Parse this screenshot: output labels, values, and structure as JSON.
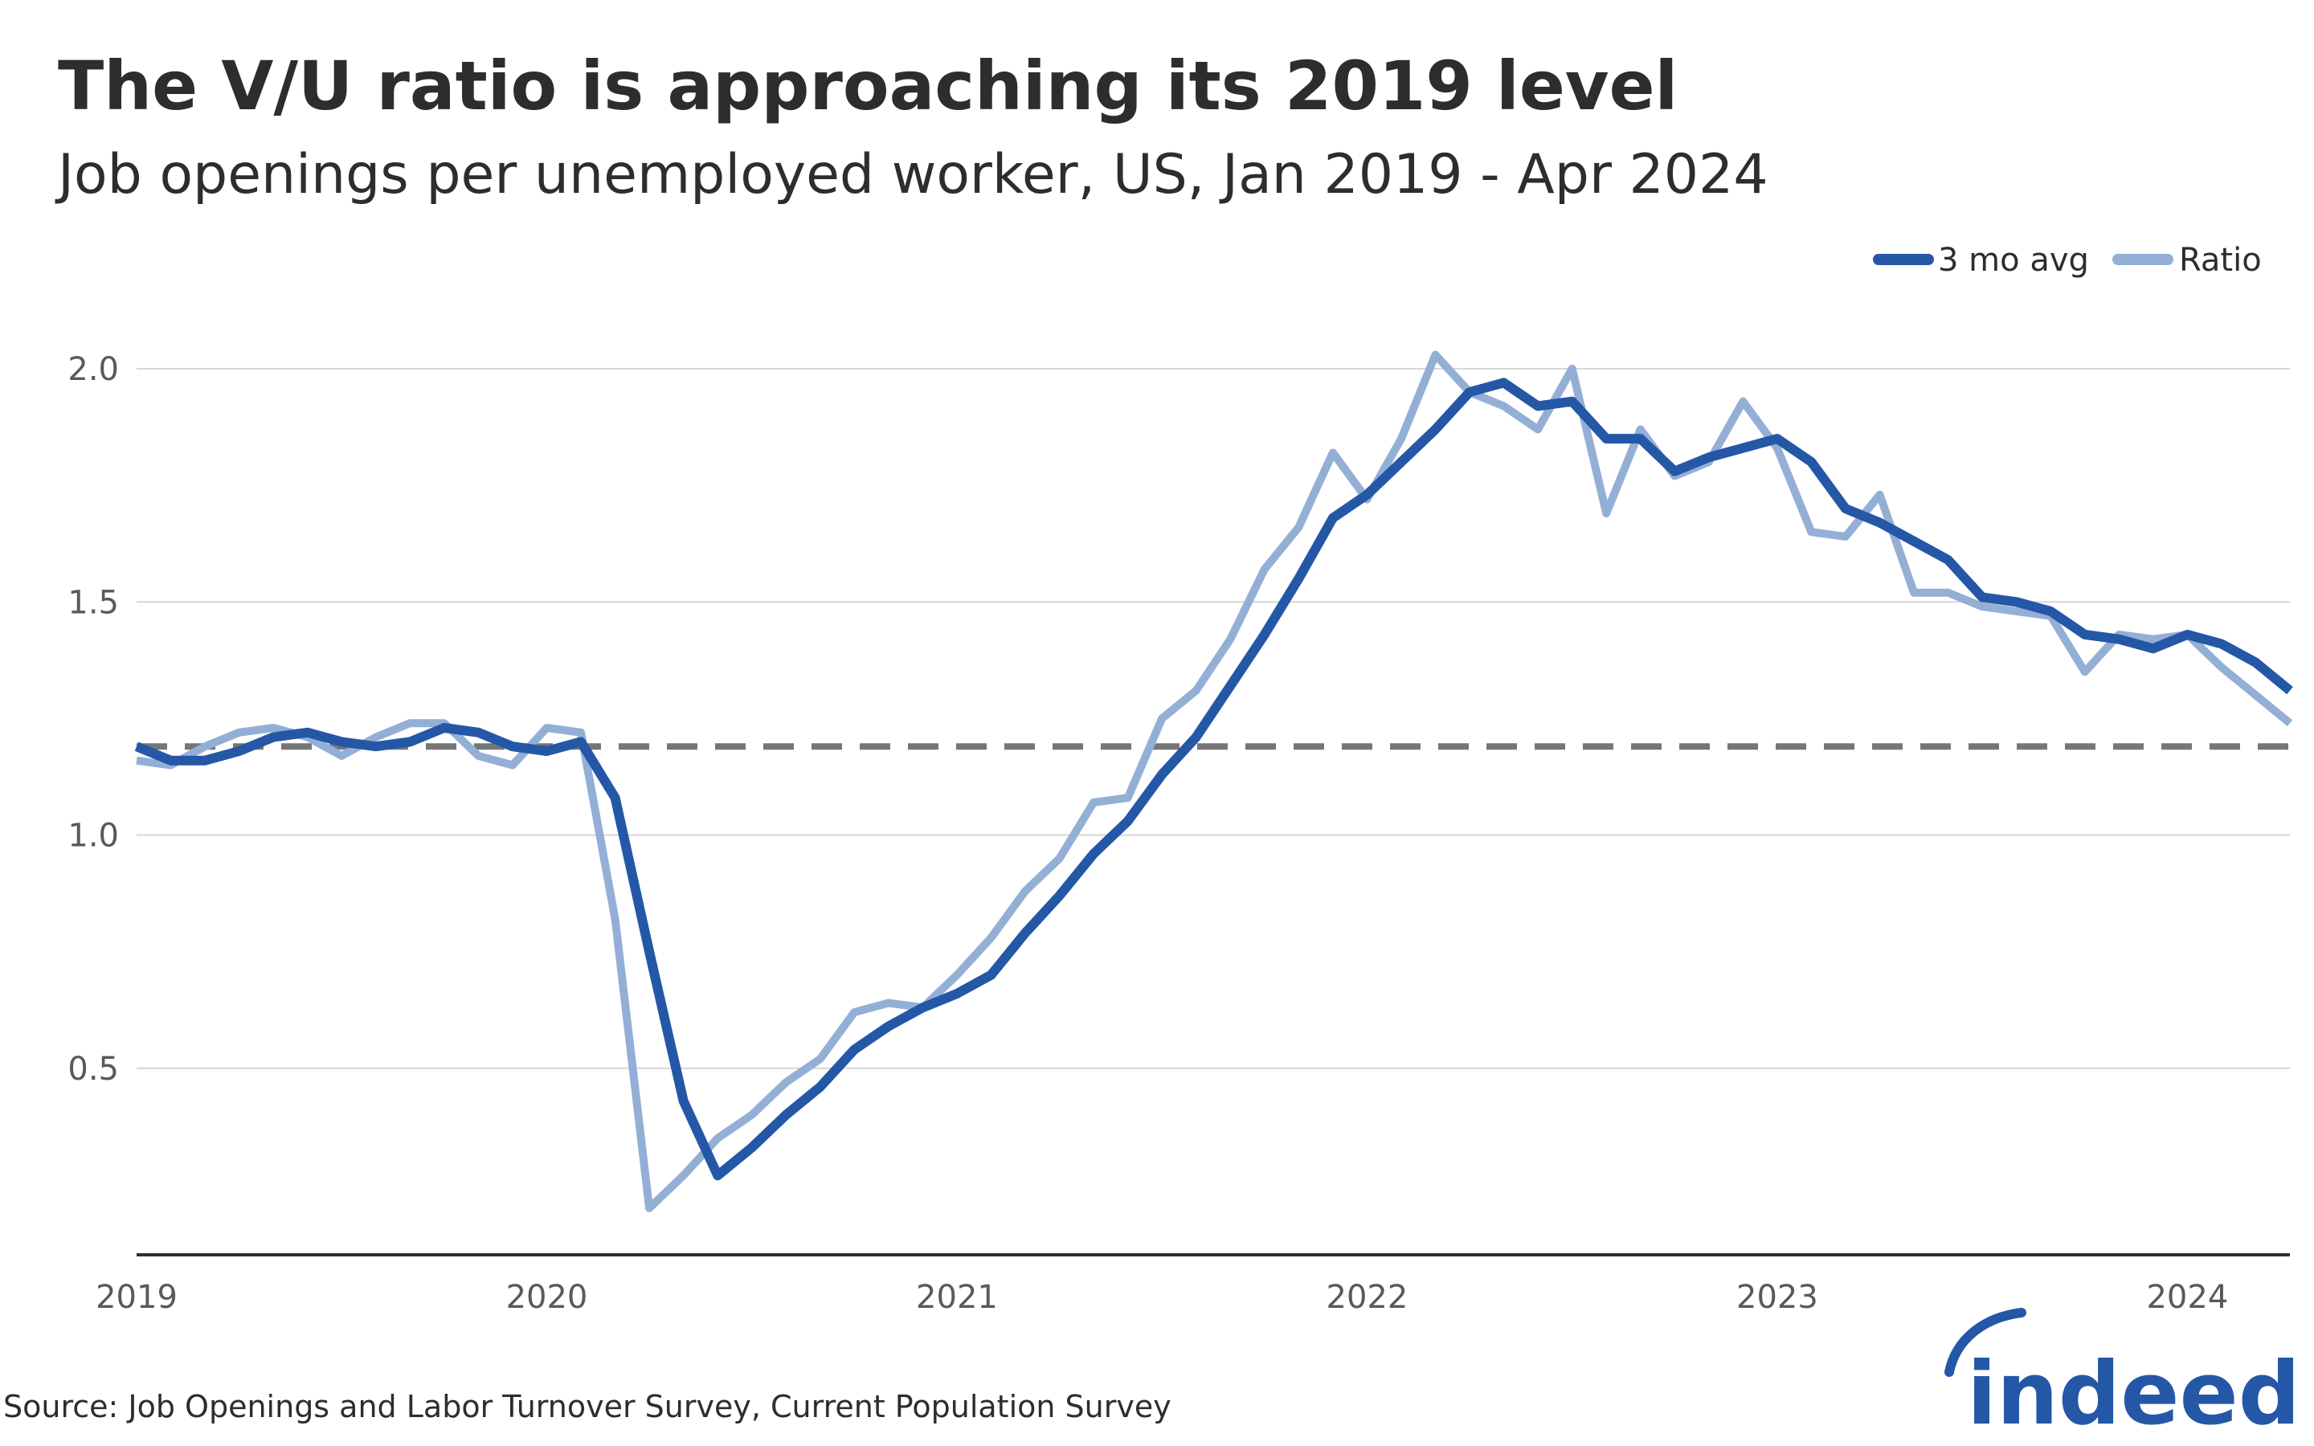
{
  "title": "The V/U ratio is approaching its 2019 level",
  "subtitle": "Job openings per unemployed worker, US, Jan 2019 - Apr 2024",
  "source": "Source: Job Openings and Labor Turnover Survey, Current Population Survey",
  "logo": {
    "text": "indeed",
    "color": "#2557a7"
  },
  "colors": {
    "avg": "#2557a7",
    "ratio": "#94afd6",
    "reference": "#767676",
    "grid": "#d6d6d6",
    "axis": "#2d2d2d"
  },
  "chart_data": {
    "type": "line",
    "title": "The V/U ratio is approaching its 2019 level",
    "subtitle": "Job openings per unemployed worker, US, Jan 2019 - Apr 2024",
    "xlabel": "",
    "ylabel": "",
    "x_start": "2019-01",
    "x_end": "2024-04",
    "ylim": [
      0.1,
      2.05
    ],
    "y_ticks": [
      0.5,
      1.0,
      1.5,
      2.0
    ],
    "y_tick_labels": [
      "0.5",
      "1.0",
      "1.5",
      "2.0"
    ],
    "x_ticks": [
      2019,
      2020,
      2021,
      2022,
      2023,
      2024
    ],
    "x_tick_labels": [
      "2019",
      "2020",
      "2021",
      "2022",
      "2023",
      "2024"
    ],
    "grid": true,
    "legend_position": "top-right",
    "reference_line": {
      "value": 1.19,
      "style": "dashed"
    },
    "series": [
      {
        "name": "3 mo avg",
        "key": "avg",
        "values": [
          1.19,
          1.16,
          1.16,
          1.18,
          1.21,
          1.22,
          1.2,
          1.19,
          1.2,
          1.23,
          1.22,
          1.19,
          1.18,
          1.2,
          1.08,
          0.75,
          0.43,
          0.27,
          0.33,
          0.4,
          0.46,
          0.54,
          0.59,
          0.63,
          0.66,
          0.7,
          0.79,
          0.87,
          0.96,
          1.03,
          1.13,
          1.21,
          1.32,
          1.43,
          1.55,
          1.68,
          1.73,
          1.8,
          1.87,
          1.95,
          1.97,
          1.92,
          1.93,
          1.85,
          1.85,
          1.78,
          1.81,
          1.83,
          1.85,
          1.8,
          1.7,
          1.67,
          1.63,
          1.59,
          1.51,
          1.5,
          1.48,
          1.43,
          1.42,
          1.4,
          1.43,
          1.41,
          1.37,
          1.31
        ]
      },
      {
        "name": "Ratio",
        "key": "ratio",
        "values": [
          1.16,
          1.15,
          1.19,
          1.22,
          1.23,
          1.21,
          1.17,
          1.21,
          1.24,
          1.24,
          1.17,
          1.15,
          1.23,
          1.22,
          0.82,
          0.2,
          0.27,
          0.35,
          0.4,
          0.47,
          0.52,
          0.62,
          0.64,
          0.63,
          0.7,
          0.78,
          0.88,
          0.95,
          1.07,
          1.08,
          1.25,
          1.31,
          1.42,
          1.57,
          1.66,
          1.82,
          1.72,
          1.85,
          2.03,
          1.95,
          1.92,
          1.87,
          2.0,
          1.69,
          1.87,
          1.77,
          1.8,
          1.93,
          1.83,
          1.65,
          1.64,
          1.73,
          1.52,
          1.52,
          1.49,
          1.48,
          1.47,
          1.35,
          1.43,
          1.42,
          1.43,
          1.36,
          1.3,
          1.24
        ]
      }
    ]
  }
}
